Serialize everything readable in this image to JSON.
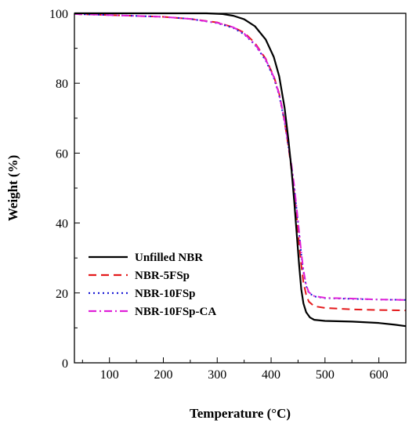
{
  "chart_data": {
    "type": "line",
    "xlabel": "Temperature (°C)",
    "ylabel": "Weight (%)",
    "xlim": [
      35,
      650
    ],
    "ylim": [
      0,
      100
    ],
    "xticks": [
      100,
      200,
      300,
      400,
      500,
      600
    ],
    "yticks": [
      0,
      20,
      40,
      60,
      80,
      100
    ],
    "legend_position": "lower-left",
    "series": [
      {
        "name": "Unfilled NBR",
        "color": "#000000",
        "dash": "solid",
        "points": [
          [
            35,
            100
          ],
          [
            100,
            100
          ],
          [
            200,
            100
          ],
          [
            280,
            100
          ],
          [
            310,
            99.8
          ],
          [
            330,
            99.3
          ],
          [
            350,
            98.3
          ],
          [
            370,
            96.3
          ],
          [
            390,
            92.5
          ],
          [
            405,
            87.5
          ],
          [
            415,
            82
          ],
          [
            425,
            73
          ],
          [
            432,
            64
          ],
          [
            438,
            55
          ],
          [
            443,
            46
          ],
          [
            448,
            36
          ],
          [
            452,
            28
          ],
          [
            456,
            21
          ],
          [
            460,
            17
          ],
          [
            465,
            14.5
          ],
          [
            472,
            13
          ],
          [
            480,
            12.3
          ],
          [
            500,
            12
          ],
          [
            550,
            11.8
          ],
          [
            600,
            11.4
          ],
          [
            630,
            10.9
          ],
          [
            650,
            10.5
          ]
        ]
      },
      {
        "name": "NBR-5FSp",
        "color": "#e41a1c",
        "dash": "10,6",
        "points": [
          [
            35,
            99.8
          ],
          [
            100,
            99.5
          ],
          [
            200,
            99
          ],
          [
            250,
            98.4
          ],
          [
            300,
            97.4
          ],
          [
            330,
            96
          ],
          [
            350,
            94.5
          ],
          [
            370,
            91.5
          ],
          [
            390,
            87
          ],
          [
            405,
            82
          ],
          [
            415,
            77
          ],
          [
            425,
            69
          ],
          [
            432,
            62
          ],
          [
            438,
            55
          ],
          [
            443,
            48
          ],
          [
            448,
            41
          ],
          [
            452,
            34
          ],
          [
            456,
            28
          ],
          [
            460,
            23
          ],
          [
            465,
            19.5
          ],
          [
            470,
            17.5
          ],
          [
            480,
            16.2
          ],
          [
            500,
            15.7
          ],
          [
            550,
            15.3
          ],
          [
            600,
            15.1
          ],
          [
            650,
            15
          ]
        ]
      },
      {
        "name": "NBR-10FSp",
        "color": "#1c1cd6",
        "dash": "2,4",
        "points": [
          [
            35,
            99.8
          ],
          [
            100,
            99.5
          ],
          [
            200,
            99
          ],
          [
            250,
            98.4
          ],
          [
            300,
            97.2
          ],
          [
            330,
            95.8
          ],
          [
            350,
            94
          ],
          [
            370,
            91
          ],
          [
            390,
            86.5
          ],
          [
            405,
            81.5
          ],
          [
            415,
            76.5
          ],
          [
            425,
            69
          ],
          [
            432,
            62
          ],
          [
            438,
            56
          ],
          [
            443,
            50
          ],
          [
            448,
            43
          ],
          [
            452,
            37
          ],
          [
            456,
            31
          ],
          [
            460,
            26
          ],
          [
            465,
            22
          ],
          [
            470,
            20
          ],
          [
            480,
            19
          ],
          [
            500,
            18.5
          ],
          [
            550,
            18.3
          ],
          [
            600,
            18.1
          ],
          [
            650,
            18
          ]
        ]
      },
      {
        "name": "NBR-10FSp-CA",
        "color": "#e020d8",
        "dash": "10,4,2,4",
        "points": [
          [
            35,
            99.8
          ],
          [
            100,
            99.5
          ],
          [
            200,
            99
          ],
          [
            250,
            98.4
          ],
          [
            300,
            97.3
          ],
          [
            330,
            96
          ],
          [
            350,
            94.2
          ],
          [
            370,
            91.2
          ],
          [
            390,
            86.8
          ],
          [
            405,
            81.8
          ],
          [
            415,
            76.8
          ],
          [
            425,
            69.5
          ],
          [
            432,
            62.5
          ],
          [
            438,
            56.5
          ],
          [
            443,
            50.5
          ],
          [
            448,
            43.5
          ],
          [
            452,
            37.5
          ],
          [
            456,
            31.5
          ],
          [
            460,
            26.5
          ],
          [
            465,
            22.3
          ],
          [
            470,
            20.2
          ],
          [
            480,
            19.1
          ],
          [
            500,
            18.6
          ],
          [
            550,
            18.4
          ],
          [
            600,
            18.1
          ],
          [
            650,
            18
          ]
        ]
      }
    ]
  }
}
